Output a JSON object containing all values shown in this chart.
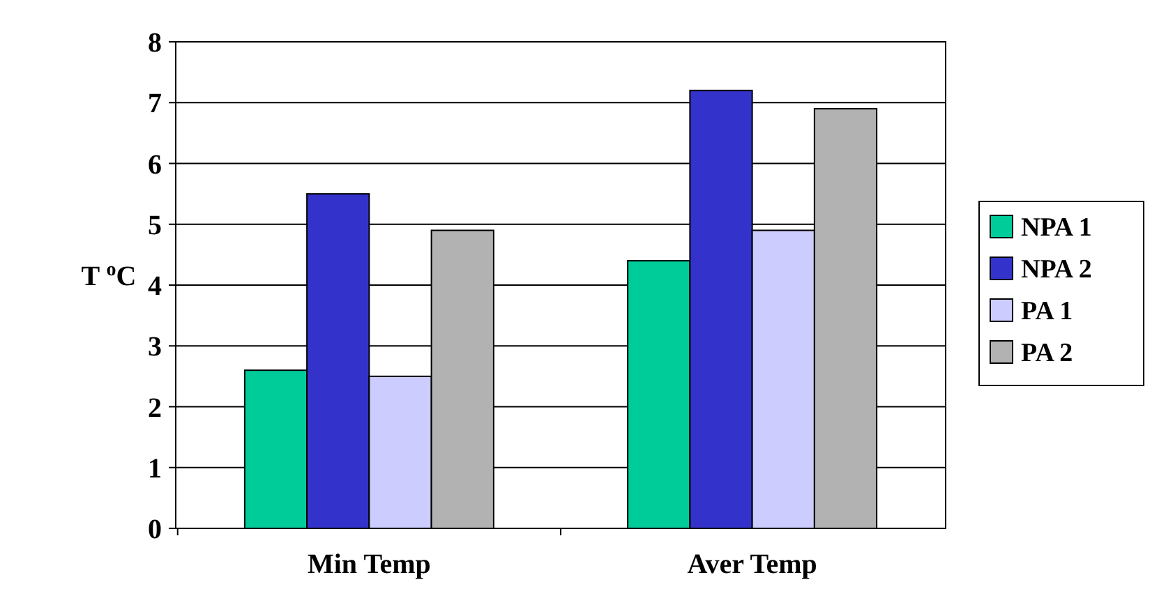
{
  "chart_data": {
    "type": "bar",
    "ylabel": "T $^{o}$C",
    "categories": [
      "Min Temp",
      "Aver Temp"
    ],
    "series": [
      {
        "name": "NPA 1",
        "color": "#00cc99",
        "values": [
          2.6,
          4.4
        ]
      },
      {
        "name": "NPA 2",
        "color": "#3333cc",
        "values": [
          5.5,
          7.2
        ]
      },
      {
        "name": "PA 1",
        "color": "#ccccff",
        "values": [
          2.5,
          4.9
        ]
      },
      {
        "name": "PA 2",
        "color": "#b2b2b2",
        "values": [
          4.9,
          6.9
        ]
      }
    ],
    "ylim": [
      0,
      8
    ],
    "yticks": [
      0,
      1,
      2,
      3,
      4,
      5,
      6,
      7,
      8
    ],
    "grid": "y",
    "legend": "right"
  }
}
